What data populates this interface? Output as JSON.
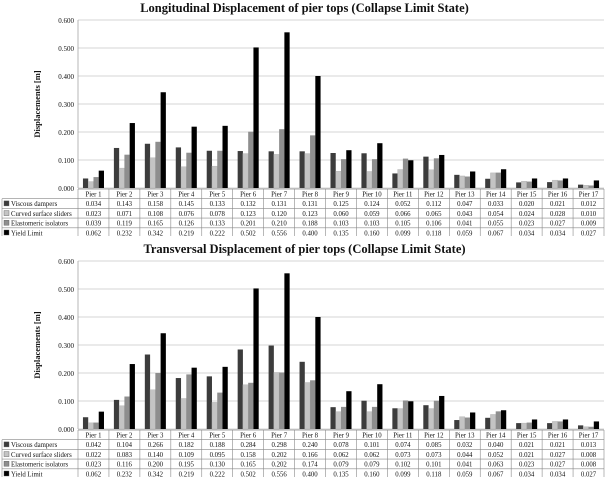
{
  "chart_data": [
    {
      "type": "bar",
      "title": "Longitudinal Displacement of pier tops (Collapse Limit State)",
      "xlabel": "",
      "ylabel": "Displacements [m]",
      "ylim": [
        0,
        0.6
      ],
      "yticks": [
        "0.000",
        "0.100",
        "0.200",
        "0.300",
        "0.400",
        "0.500",
        "0.600"
      ],
      "grid": true,
      "legend": "data table below",
      "categories": [
        "Pier 1",
        "Pier 2",
        "Pier 3",
        "Pier 4",
        "Pier 5",
        "Pier 6",
        "Pier 7",
        "Pier 8",
        "Pier 9",
        "Pier 10",
        "Pier 11",
        "Pier 12",
        "Pier 13",
        "Pier 14",
        "Pier 15",
        "Pier 16",
        "Pier 17"
      ],
      "series": [
        {
          "name": "Viscous dampers",
          "color": "#3c3c3c",
          "values": [
            0.034,
            0.143,
            0.158,
            0.145,
            0.133,
            0.132,
            0.131,
            0.131,
            0.125,
            0.124,
            0.052,
            0.112,
            0.047,
            0.033,
            0.02,
            0.021,
            0.012
          ],
          "labels": [
            "0.034",
            "0.143",
            "0.158",
            "0.145",
            "0.133",
            "0.132",
            "0.131",
            "0.131",
            "0.125",
            "0.124",
            "0.052",
            "0.112",
            "0.047",
            "0.033",
            "0.020",
            "0.021",
            "0.012"
          ]
        },
        {
          "name": "Curved surface sliders",
          "color": "#c4c4c4",
          "values": [
            0.023,
            0.071,
            0.108,
            0.076,
            0.078,
            0.123,
            0.12,
            0.123,
            0.06,
            0.059,
            0.066,
            0.065,
            0.043,
            0.054,
            0.024,
            0.028,
            0.01
          ],
          "labels": [
            "0.023",
            "0.071",
            "0.108",
            "0.076",
            "0.078",
            "0.123",
            "0.120",
            "0.123",
            "0.060",
            "0.059",
            "0.066",
            "0.065",
            "0.043",
            "0.054",
            "0.024",
            "0.028",
            "0.010"
          ]
        },
        {
          "name": "Elastomeric isolators",
          "color": "#8e8e8e",
          "values": [
            0.039,
            0.119,
            0.165,
            0.126,
            0.133,
            0.201,
            0.21,
            0.188,
            0.103,
            0.103,
            0.105,
            0.106,
            0.041,
            0.055,
            0.023,
            0.027,
            0.009
          ],
          "labels": [
            "0.039",
            "0.119",
            "0.165",
            "0.126",
            "0.133",
            "0.201",
            "0.210",
            "0.188",
            "0.103",
            "0.103",
            "0.105",
            "0.106",
            "0.041",
            "0.055",
            "0.023",
            "0.027",
            "0.009"
          ]
        },
        {
          "name": "Yield Limit",
          "color": "#000000",
          "values": [
            0.062,
            0.232,
            0.342,
            0.219,
            0.222,
            0.502,
            0.556,
            0.4,
            0.135,
            0.16,
            0.099,
            0.118,
            0.059,
            0.067,
            0.034,
            0.034,
            0.027
          ],
          "labels": [
            "0.062",
            "0.232",
            "0.342",
            "0.219",
            "0.222",
            "0.502",
            "0.556",
            "0.400",
            "0.135",
            "0.160",
            "0.099",
            "0.118",
            "0.059",
            "0.067",
            "0.034",
            "0.034",
            "0.027"
          ]
        }
      ]
    },
    {
      "type": "bar",
      "title": "Transversal Displacement of pier tops (Collapse Limit State)",
      "xlabel": "",
      "ylabel": "Displacements [m]",
      "ylim": [
        0,
        0.6
      ],
      "yticks": [
        "0.000",
        "0.100",
        "0.200",
        "0.300",
        "0.400",
        "0.500",
        "0.600"
      ],
      "grid": true,
      "legend": "data table below",
      "categories": [
        "Pier 1",
        "Pier 2",
        "Pier 3",
        "Pier 4",
        "Pier 5",
        "Pier 6",
        "Pier 7",
        "Pier 8",
        "Pier 9",
        "Pier 10",
        "Pier 11",
        "Pier 12",
        "Pier 13",
        "Pier 14",
        "Pier 15",
        "Pier 16",
        "Pier 17"
      ],
      "series": [
        {
          "name": "Viscous dampers",
          "color": "#3c3c3c",
          "values": [
            0.042,
            0.104,
            0.266,
            0.182,
            0.188,
            0.284,
            0.298,
            0.24,
            0.078,
            0.101,
            0.074,
            0.085,
            0.032,
            0.04,
            0.021,
            0.021,
            0.013
          ],
          "labels": [
            "0.042",
            "0.104",
            "0.266",
            "0.182",
            "0.188",
            "0.284",
            "0.298",
            "0.240",
            "0.078",
            "0.101",
            "0.074",
            "0.085",
            "0.032",
            "0.040",
            "0.021",
            "0.021",
            "0.013"
          ]
        },
        {
          "name": "Curved surface sliders",
          "color": "#c4c4c4",
          "values": [
            0.022,
            0.083,
            0.14,
            0.109,
            0.095,
            0.158,
            0.202,
            0.166,
            0.062,
            0.062,
            0.073,
            0.073,
            0.044,
            0.052,
            0.021,
            0.027,
            0.008
          ],
          "labels": [
            "0.022",
            "0.083",
            "0.140",
            "0.109",
            "0.095",
            "0.158",
            "0.202",
            "0.166",
            "0.062",
            "0.062",
            "0.073",
            "0.073",
            "0.044",
            "0.052",
            "0.021",
            "0.027",
            "0.008"
          ]
        },
        {
          "name": "Elastomeric isolators",
          "color": "#8e8e8e",
          "values": [
            0.023,
            0.116,
            0.2,
            0.195,
            0.13,
            0.165,
            0.202,
            0.174,
            0.079,
            0.079,
            0.102,
            0.101,
            0.041,
            0.063,
            0.023,
            0.027,
            0.008
          ],
          "labels": [
            "0.023",
            "0.116",
            "0.200",
            "0.195",
            "0.130",
            "0.165",
            "0.202",
            "0.174",
            "0.079",
            "0.079",
            "0.102",
            "0.101",
            "0.041",
            "0.063",
            "0.023",
            "0.027",
            "0.008"
          ]
        },
        {
          "name": "Yield Limit",
          "color": "#000000",
          "values": [
            0.062,
            0.232,
            0.342,
            0.219,
            0.222,
            0.502,
            0.556,
            0.4,
            0.135,
            0.16,
            0.099,
            0.118,
            0.059,
            0.067,
            0.034,
            0.034,
            0.027
          ],
          "labels": [
            "0.062",
            "0.232",
            "0.342",
            "0.219",
            "0.222",
            "0.502",
            "0.556",
            "0.400",
            "0.135",
            "0.160",
            "0.099",
            "0.118",
            "0.059",
            "0.067",
            "0.034",
            "0.034",
            "0.027"
          ]
        }
      ]
    }
  ]
}
